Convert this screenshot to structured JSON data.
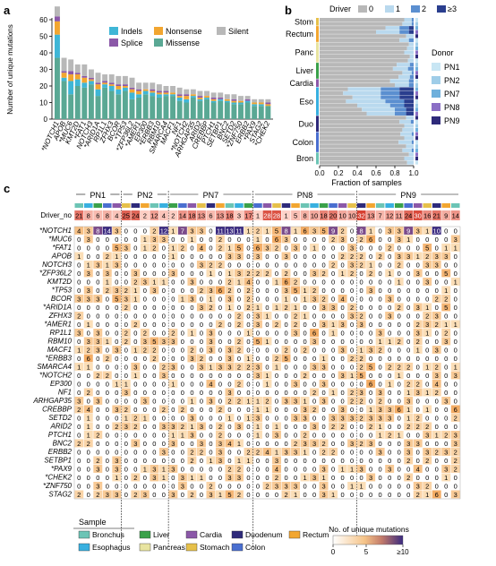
{
  "panels": {
    "a": "a",
    "b": "b",
    "c": "c"
  },
  "colors": {
    "indels": "#3fb6d6",
    "nonsense": "#f2a630",
    "splice": "#8b58a8",
    "missense": "#5aa894",
    "silent": "#b8b8b8",
    "heat_low": "#ffffff",
    "heat_mid": "#f5c489",
    "heat_high": "#4a2a85"
  },
  "chart_data": [
    {
      "type": "bar",
      "panel": "a",
      "ylabel": "Number of unique mutations",
      "ylim": [
        0,
        60
      ],
      "yticks": [
        0,
        10,
        20,
        30,
        40,
        50,
        60
      ],
      "legend": [
        "Indels",
        "Nonsense",
        "Splice",
        "Missense",
        "Silent"
      ],
      "categories": [
        "*NOTCH1",
        "APOB",
        "*MUC6",
        "KMT2D",
        "*FAT1",
        "NOTCH3",
        "*ARID1A",
        "RP1L1",
        "ZFHX3",
        "BCOR",
        "*TP53",
        "*ZFP36L2",
        "*AMER1",
        "EP300",
        "*ERBB3",
        "RBM10",
        "SMARCA4",
        "MACF1",
        "NF1",
        "*NOTCH2",
        "ARHGAP35",
        "ARID2",
        "CREBBP",
        "PTCH1",
        "SETBP1",
        "BNC2",
        "SETD2",
        "*ZNF750",
        "ERBB2",
        "*PAX9",
        "STAG2",
        "*CHEK2"
      ],
      "series": [
        {
          "name": "Indels",
          "values": [
            14,
            2,
            8,
            4,
            3,
            2,
            4,
            2,
            3,
            3,
            2,
            4,
            2,
            2,
            2,
            2,
            1,
            1,
            2,
            2,
            1,
            1,
            1,
            1,
            1,
            1,
            1,
            1,
            1,
            1,
            1,
            0
          ]
        },
        {
          "name": "Nonsense",
          "values": [
            8,
            3,
            4,
            3,
            3,
            1,
            3,
            1,
            1,
            2,
            1,
            2,
            2,
            1,
            1,
            1,
            1,
            1,
            1,
            2,
            1,
            1,
            1,
            1,
            0,
            1,
            1,
            1,
            0,
            1,
            1,
            1
          ]
        },
        {
          "name": "Splice",
          "values": [
            3,
            1,
            2,
            1,
            1,
            1,
            1,
            1,
            1,
            1,
            1,
            1,
            1,
            0,
            1,
            1,
            1,
            0,
            1,
            1,
            0,
            1,
            0,
            1,
            1,
            0,
            1,
            0,
            1,
            0,
            0,
            1
          ]
        },
        {
          "name": "Missense",
          "values": [
            37,
            23,
            15,
            20,
            19,
            21,
            14,
            19,
            17,
            15,
            17,
            12,
            13,
            15,
            14,
            13,
            14,
            14,
            11,
            10,
            13,
            11,
            12,
            10,
            11,
            10,
            9,
            9,
            10,
            8,
            8,
            8
          ]
        },
        {
          "name": "Silent",
          "values": [
            6,
            8,
            7,
            5,
            7,
            5,
            6,
            4,
            5,
            5,
            5,
            6,
            4,
            4,
            4,
            4,
            3,
            4,
            4,
            3,
            3,
            3,
            3,
            3,
            3,
            3,
            3,
            3,
            2,
            2,
            2,
            2
          ]
        }
      ]
    },
    {
      "type": "bar",
      "panel": "b",
      "orientation": "horizontal-stacked",
      "title": "Driver",
      "legend": [
        "0",
        "1",
        "2",
        "≥3"
      ],
      "xlabel": "Fraction of samples",
      "xticks": [
        "0.0",
        "0.2",
        "0.4",
        "0.6",
        "0.8",
        "1.0"
      ],
      "categories": [
        "Stom",
        "Rectum",
        "Panc",
        "Liver",
        "Cardia",
        "Eso",
        "Duo",
        "Colon",
        "Bron"
      ],
      "donor_title": "Donor",
      "donors": [
        "PN1",
        "PN2",
        "PN7",
        "PN8",
        "PN9"
      ],
      "rows": 36,
      "group_rows": [
        [
          0,
          2
        ],
        [
          2,
          6
        ],
        [
          6,
          11
        ],
        [
          11,
          15
        ],
        [
          15,
          17
        ],
        [
          17,
          24
        ],
        [
          24,
          28
        ],
        [
          28,
          33
        ],
        [
          33,
          36
        ]
      ],
      "fractions_0_1_2_3": [
        [
          0.9,
          0.08,
          0.02,
          0
        ],
        [
          0.88,
          0.1,
          0.02,
          0
        ],
        [
          0.7,
          0.15,
          0.1,
          0.05
        ],
        [
          0.6,
          0.25,
          0.1,
          0.05
        ],
        [
          0.92,
          0.08,
          0,
          0
        ],
        [
          0.85,
          0.1,
          0.05,
          0
        ],
        [
          0.95,
          0.05,
          0,
          0
        ],
        [
          0.93,
          0.07,
          0,
          0
        ],
        [
          0.9,
          0.1,
          0,
          0
        ],
        [
          0.96,
          0.04,
          0,
          0
        ],
        [
          0.94,
          0.06,
          0,
          0
        ],
        [
          0.82,
          0.14,
          0.04,
          0
        ],
        [
          0.78,
          0.16,
          0.06,
          0
        ],
        [
          0.88,
          0.1,
          0.02,
          0
        ],
        [
          0.84,
          0.12,
          0.04,
          0
        ],
        [
          0.75,
          0.2,
          0.05,
          0
        ],
        [
          0.8,
          0.15,
          0.05,
          0
        ],
        [
          0.3,
          0.35,
          0.2,
          0.15
        ],
        [
          0.25,
          0.4,
          0.2,
          0.15
        ],
        [
          0.35,
          0.3,
          0.2,
          0.15
        ],
        [
          0.28,
          0.42,
          0.2,
          0.1
        ],
        [
          0.4,
          0.35,
          0.15,
          0.1
        ],
        [
          0.45,
          0.35,
          0.12,
          0.08
        ],
        [
          0.5,
          0.3,
          0.12,
          0.08
        ],
        [
          0.92,
          0.08,
          0,
          0
        ],
        [
          0.85,
          0.12,
          0.03,
          0
        ],
        [
          0.9,
          0.1,
          0,
          0
        ],
        [
          0.88,
          0.12,
          0,
          0
        ],
        [
          0.86,
          0.12,
          0.02,
          0
        ],
        [
          0.9,
          0.1,
          0,
          0
        ],
        [
          0.84,
          0.14,
          0.02,
          0
        ],
        [
          0.92,
          0.08,
          0,
          0
        ],
        [
          0.88,
          0.1,
          0.02,
          0
        ],
        [
          0.95,
          0.05,
          0,
          0
        ],
        [
          0.9,
          0.1,
          0,
          0
        ],
        [
          0.93,
          0.07,
          0,
          0
        ]
      ]
    },
    {
      "type": "heatmap",
      "panel": "c",
      "donors": [
        "PN1",
        "PN2",
        "PN7",
        "PN8",
        "PN9"
      ],
      "donor_columns": [
        5,
        5,
        9,
        11,
        11
      ],
      "sample_colors": [
        "#6cc4b5",
        "#38b0e0",
        "#3aa14a",
        "#4a6fd0",
        "#8b58a8",
        "#e6c04a",
        "#2e2a7a",
        "#f2a630"
      ],
      "driver_label": "Driver_no",
      "driver_no": [
        "21",
        "8",
        "6",
        "8",
        "4",
        "25",
        "24",
        "2",
        "12",
        "4",
        "2",
        "14",
        "18",
        "13",
        "6",
        "13",
        "18",
        "3",
        "17",
        "1",
        "28",
        "28",
        "1",
        "5",
        "8",
        "10",
        "18",
        "20",
        "10",
        "10",
        "32",
        "13",
        "7",
        "12",
        "11",
        "24",
        "30",
        "16",
        "21",
        "9",
        "14"
      ],
      "genes": [
        "*NOTCH1",
        "*MUC6",
        "*FAT1",
        "APOB",
        "NOTCH3",
        "*ZFP36L2",
        "KMT2D",
        "*TP53",
        "BCOR",
        "*ARID1A",
        "ZFHX3",
        "*AMER1",
        "RP1L1",
        "RBM10",
        "MACF1",
        "*ERBB3",
        "SMARCA4",
        "*NOTCH2",
        "EP300",
        "NF1",
        "ARHGAP35",
        "CREBBP",
        "SETD2",
        "ARID2",
        "PTCH1",
        "BNC2",
        "ERBB2",
        "SETBP1",
        "*PAX9",
        "*CHEK2",
        "*ZNF750",
        "STAG2"
      ],
      "color_scale": {
        "label": "No. of unique mutations",
        "ticks": [
          "0",
          "5",
          "≥10"
        ]
      },
      "sample_legend": {
        "title": "Sample",
        "items": [
          {
            "label": "Bronchus",
            "color": "#6cc4b5"
          },
          {
            "label": "Liver",
            "color": "#3aa14a"
          },
          {
            "label": "Cardia",
            "color": "#8b58a8"
          },
          {
            "label": "Duodenum",
            "color": "#2e2a7a"
          },
          {
            "label": "Rectum",
            "color": "#f2a630"
          },
          {
            "label": "Esophagus",
            "color": "#38b0e0"
          },
          {
            "label": "Pancreas",
            "color": "#e8e4a0"
          },
          {
            "label": "Stomach",
            "color": "#e6c04a"
          },
          {
            "label": "Colon",
            "color": "#4a6fd0"
          }
        ]
      }
    }
  ]
}
